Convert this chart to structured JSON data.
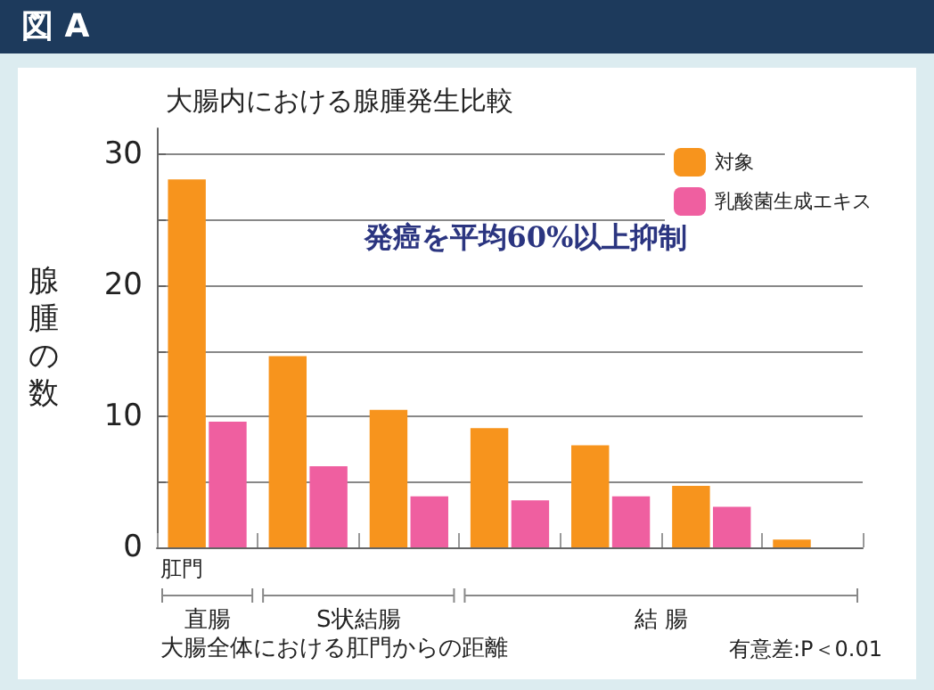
{
  "chart_data": {
    "type": "bar",
    "title": "大腸内における腺腫発生比較",
    "ylabel": "腺腫の数",
    "xlabel": "大腸全体における肛門からの距離",
    "annotations": [
      "図 A",
      "発癌を平均60%以上抑制",
      "肛門",
      "直腸",
      "S状結腸",
      "結 腸",
      "有意差:P＜0.01"
    ],
    "categories": [
      null,
      null,
      null,
      null,
      null,
      null,
      null
    ],
    "series": [
      {
        "name": "対象",
        "color": "#f7941d",
        "values": [
          28.1,
          14.6,
          10.5,
          9.1,
          7.8,
          4.7,
          0.6
        ]
      },
      {
        "name": "乳酸菌生成エキス",
        "color": "#ef5fa0",
        "values": [
          9.6,
          6.2,
          3.9,
          3.6,
          3.9,
          3.1,
          null
        ]
      }
    ],
    "ylim": [
      0,
      32
    ],
    "yticks": [
      0,
      {
        "value": 5,
        "label": null
      },
      10,
      {
        "value": 15,
        "label": null
      },
      20,
      {
        "value": 25,
        "label": null
      },
      30
    ],
    "grid": "y",
    "legend": "top right"
  }
}
